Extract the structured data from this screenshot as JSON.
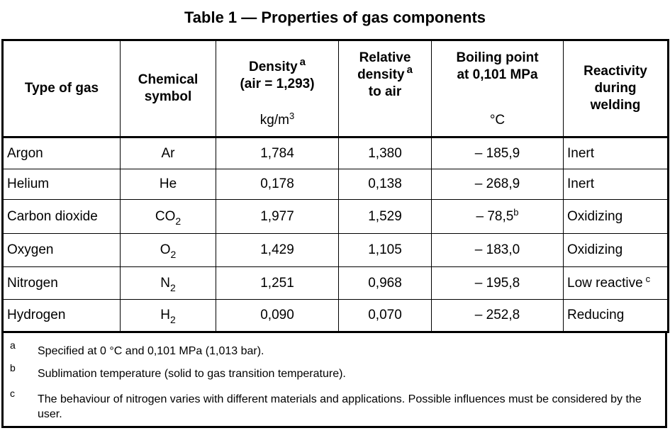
{
  "title": "Table 1 — Properties of gas components",
  "header": {
    "type": "Type of gas",
    "symbol": [
      "Chemical",
      "symbol"
    ],
    "density": [
      "Density",
      "(air = 1,293)"
    ],
    "density_mark": "a",
    "density_unit": "kg/m",
    "density_unit_exp": "3",
    "relative": [
      "Relative",
      "density",
      "to air"
    ],
    "relative_mark": "a",
    "boiling": [
      "Boiling point",
      "at 0,101 MPa"
    ],
    "boiling_unit": "°C",
    "reactivity": [
      "Reactivity",
      "during",
      "welding"
    ]
  },
  "rows": [
    {
      "gas": "Argon",
      "sym": "Ar",
      "sub": "",
      "density": "1,784",
      "relative": "1,380",
      "boiling": "– 185,9",
      "bmark": "",
      "react": "Inert",
      "rmark": ""
    },
    {
      "gas": "Helium",
      "sym": "He",
      "sub": "",
      "density": "0,178",
      "relative": "0,138",
      "boiling": "– 268,9",
      "bmark": "",
      "react": "Inert",
      "rmark": ""
    },
    {
      "gas": "Carbon dioxide",
      "sym": "CO",
      "sub": "2",
      "density": "1,977",
      "relative": "1,529",
      "boiling": "– 78,5",
      "bmark": "b",
      "react": "Oxidizing",
      "rmark": ""
    },
    {
      "gas": "Oxygen",
      "sym": "O",
      "sub": "2",
      "density": "1,429",
      "relative": "1,105",
      "boiling": "– 183,0",
      "bmark": "",
      "react": "Oxidizing",
      "rmark": ""
    },
    {
      "gas": "Nitrogen",
      "sym": "N",
      "sub": "2",
      "density": "1,251",
      "relative": "0,968",
      "boiling": "– 195,8",
      "bmark": "",
      "react": "Low reactive",
      "rmark": "c"
    },
    {
      "gas": "Hydrogen",
      "sym": "H",
      "sub": "2",
      "density": "0,090",
      "relative": "0,070",
      "boiling": "– 252,8",
      "bmark": "",
      "react": "Reducing",
      "rmark": ""
    }
  ],
  "notes": [
    {
      "mark": "a",
      "text": "Specified at 0 °C and 0,101 MPa (1,013 bar)."
    },
    {
      "mark": "b",
      "text": "Sublimation temperature (solid to gas transition temperature)."
    },
    {
      "mark": "c",
      "text": "The behaviour of nitrogen varies with different materials and applications. Possible influences must be considered by the user."
    }
  ]
}
